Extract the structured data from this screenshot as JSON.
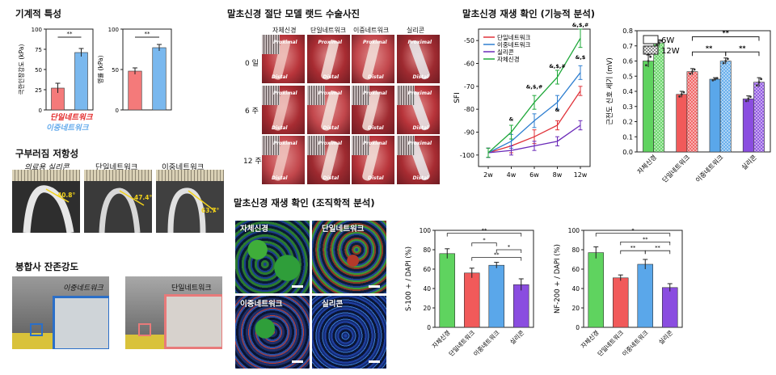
{
  "sections": {
    "mechanical_title": "기계적 특성",
    "bending_title": "구부러짐 저항성",
    "suture_title": "봉합사 잔존강도",
    "surgery_title": "말초신경 절단 모델 랫드 수술사진",
    "functional_title": "말초신경 재생 확인 (기능적 분석)",
    "histology_title": "말초신경 재생 확인 (조직학적 분석)"
  },
  "mechanical": {
    "legend_single": "단일네트워크",
    "legend_double": "이중네트워크",
    "colors": {
      "single": "#f47a7a",
      "double": "#7ab8ee"
    }
  },
  "bending": {
    "labels": [
      "의료용 실리콘",
      "단일네트워크",
      "이중네트워크"
    ],
    "angles": [
      "40.8°",
      "47.4°",
      "63.7°"
    ]
  },
  "suture": {
    "labels": [
      "이중네트워크",
      "단일네트워크"
    ]
  },
  "surgery": {
    "columns": [
      "자체신경",
      "단일네트워크",
      "이중네트워크",
      "실리콘"
    ],
    "rows": [
      "0 일",
      "6 주",
      "12 주"
    ],
    "proximal": "Proximal",
    "distal": "Distal"
  },
  "histology": {
    "panels": [
      "자체신경",
      "단일네트워크",
      "이중네트워크",
      "실리콘"
    ]
  },
  "chart_data": [
    {
      "type": "bar",
      "id": "tensile",
      "ylabel": "극한인장강도 (kPa)",
      "categories": [
        "단일네트워크",
        "이중네트워크"
      ],
      "values": [
        27,
        71
      ],
      "errors": [
        6,
        5
      ],
      "ylim": [
        0,
        100
      ],
      "yticks": [
        "0",
        "25",
        "50",
        "75",
        "100"
      ],
      "significance": [
        "**"
      ]
    },
    {
      "type": "bar",
      "id": "modulus",
      "ylabel": "영률 (kPa)",
      "categories": [
        "단일네트워크",
        "이중네트워크"
      ],
      "values": [
        48,
        77
      ],
      "errors": [
        4,
        4
      ],
      "ylim": [
        0,
        100
      ],
      "yticks": [
        "0",
        "50",
        "100"
      ],
      "significance": [
        "**"
      ]
    },
    {
      "type": "line",
      "id": "sfi",
      "ylabel": "SFI",
      "x": [
        "2w",
        "4w",
        "6w",
        "8w",
        "12w"
      ],
      "ylim": [
        -105,
        -45
      ],
      "yticks": [
        "-100",
        "-90",
        "-80",
        "-70",
        "-60",
        "-50"
      ],
      "series": [
        {
          "name": "단일네트워크",
          "color": "#e0333a",
          "values": [
            -99,
            -96,
            -92,
            -87,
            -72
          ],
          "errors": [
            2,
            3,
            3,
            2,
            2
          ]
        },
        {
          "name": "이중네트워크",
          "color": "#2f7fd0",
          "values": [
            -99,
            -94,
            -85,
            -77,
            -64
          ],
          "errors": [
            2,
            3,
            3,
            3,
            3
          ]
        },
        {
          "name": "실리콘",
          "color": "#6a2ab8",
          "values": [
            -99,
            -98,
            -96,
            -94,
            -87
          ],
          "errors": [
            2,
            2,
            2,
            2,
            2
          ]
        },
        {
          "name": "자체신경",
          "color": "#1fa83a",
          "values": [
            -99,
            -90,
            -77,
            -66,
            -49
          ],
          "errors": [
            2,
            3,
            3,
            3,
            4
          ]
        }
      ],
      "annotations": [
        {
          "x": "4w",
          "text": "&"
        },
        {
          "x": "6w",
          "text": "&,$,#"
        },
        {
          "x": "8w",
          "text": "&,$,#"
        },
        {
          "x": "12w",
          "text": "&,$,#"
        },
        {
          "x": "12w",
          "text": "&,$"
        },
        {
          "x": "8w",
          "text": "&"
        }
      ]
    },
    {
      "type": "bar",
      "id": "emg",
      "ylabel": "근전도 신호 세기 (mV)",
      "categories": [
        "자체신경",
        "단일네트워크",
        "이중네트워크",
        "실리콘"
      ],
      "legend": [
        "6W",
        "12W"
      ],
      "series": [
        {
          "name": "6W",
          "values": [
            0.6,
            0.38,
            0.48,
            0.35
          ],
          "errors": [
            0.04,
            0.02,
            0.01,
            0.02
          ]
        },
        {
          "name": "12W",
          "values": [
            0.72,
            0.53,
            0.6,
            0.46
          ],
          "errors": [
            0.02,
            0.02,
            0.02,
            0.03
          ]
        }
      ],
      "colors": [
        "#5fd35f",
        "#f15a5a",
        "#5aa7ea",
        "#8a4de0"
      ],
      "ylim": [
        0,
        0.8
      ],
      "yticks": [
        "0.0",
        "0.1",
        "0.2",
        "0.3",
        "0.4",
        "0.5",
        "0.6",
        "0.7",
        "0.8"
      ],
      "significance": [
        "**",
        "**",
        "**"
      ]
    },
    {
      "type": "bar",
      "id": "s100",
      "ylabel": "S-100 + / DAPI (%)",
      "categories": [
        "자체신경",
        "단일네트워크",
        "이중네트워크",
        "실리콘"
      ],
      "values": [
        76,
        56,
        64,
        44
      ],
      "errors": [
        5,
        5,
        3,
        6
      ],
      "colors": [
        "#5fd35f",
        "#f15a5a",
        "#5aa7ea",
        "#8a4de0"
      ],
      "ylim": [
        0,
        100
      ],
      "yticks": [
        "0",
        "20",
        "40",
        "60",
        "80",
        "100"
      ],
      "significance": [
        "**",
        "*",
        "*",
        "**"
      ]
    },
    {
      "type": "bar",
      "id": "nf200",
      "ylabel": "NF-200 + / DAPI (%)",
      "categories": [
        "자체신경",
        "단일네트워크",
        "이중네트워크",
        "실리콘"
      ],
      "values": [
        77,
        51,
        65,
        41
      ],
      "errors": [
        6,
        3,
        5,
        4
      ],
      "colors": [
        "#5fd35f",
        "#f15a5a",
        "#5aa7ea",
        "#8a4de0"
      ],
      "ylim": [
        0,
        100
      ],
      "yticks": [
        "0",
        "20",
        "40",
        "60",
        "80",
        "100"
      ],
      "significance": [
        "*",
        "**",
        "**",
        "**"
      ]
    }
  ]
}
